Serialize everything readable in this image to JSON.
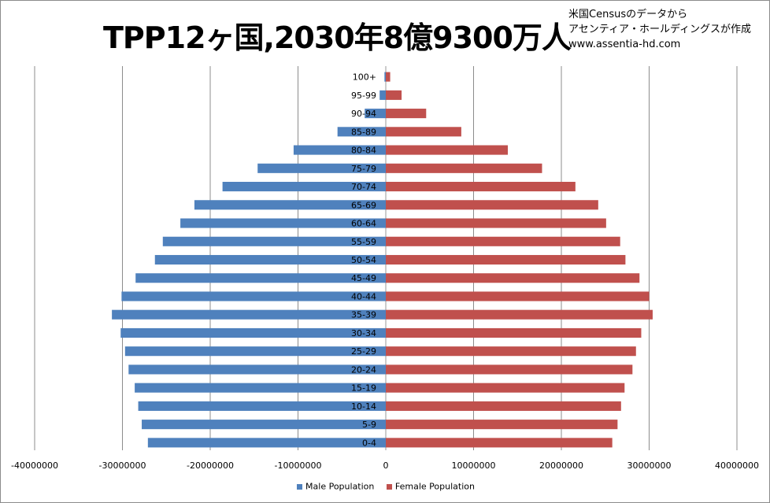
{
  "title": "TPP12ヶ国,2030年8億9300万人",
  "attribution": {
    "line1": "米国Censusのデータから",
    "line2": "アセンティア・ホールディングスが作成",
    "line3": "www.assentia-hd.com"
  },
  "chart_data": {
    "type": "bar",
    "orientation": "horizontal",
    "title": "TPP12ヶ国,2030年8億9300万人",
    "categories": [
      "0-4",
      "5-9",
      "10-14",
      "15-19",
      "20-24",
      "25-29",
      "30-34",
      "35-39",
      "40-44",
      "45-49",
      "50-54",
      "55-59",
      "60-64",
      "65-69",
      "70-74",
      "75-79",
      "80-84",
      "85-89",
      "90-94",
      "95-99",
      "100+"
    ],
    "series": [
      {
        "name": "Male Population",
        "color": "#4f81bd",
        "values": [
          -27100000,
          -27800000,
          -28200000,
          -28600000,
          -29300000,
          -29700000,
          -30200000,
          -31200000,
          -30100000,
          -28500000,
          -26300000,
          -25400000,
          -23400000,
          -21800000,
          -18600000,
          -14600000,
          -10500000,
          -5500000,
          -2400000,
          -700000,
          -150000
        ]
      },
      {
        "name": "Female Population",
        "color": "#c0504d",
        "values": [
          25800000,
          26400000,
          26800000,
          27200000,
          28100000,
          28500000,
          29100000,
          30400000,
          30000000,
          28900000,
          27300000,
          26700000,
          25100000,
          24200000,
          21600000,
          17800000,
          13900000,
          8600000,
          4600000,
          1800000,
          500000
        ]
      },
      {
        "name": "",
        "color": "#4f81bd",
        "values": [
          -27100000,
          -27800000,
          -28200000,
          -28600000,
          -29300000,
          -29700000,
          -30200000,
          -31200000,
          -30100000,
          -28500000,
          -26300000,
          -25400000,
          -23400000,
          -21800000,
          -18600000,
          -14600000,
          -10500000,
          -5500000,
          -2400000,
          -700000,
          -150000
        ]
      }
    ],
    "x_ticks": [
      "-40000000",
      "-30000000",
      "-20000000",
      "-10000000",
      "0",
      "10000000",
      "20000000",
      "30000000",
      "40000000"
    ],
    "xlim": [
      -40000000,
      40000000
    ],
    "grid": "vertical major gridlines",
    "legend_position": "bottom"
  },
  "legend": {
    "male_label": "Male Population",
    "female_label": "Female Population",
    "male_color": "#4f81bd",
    "female_color": "#c0504d"
  }
}
